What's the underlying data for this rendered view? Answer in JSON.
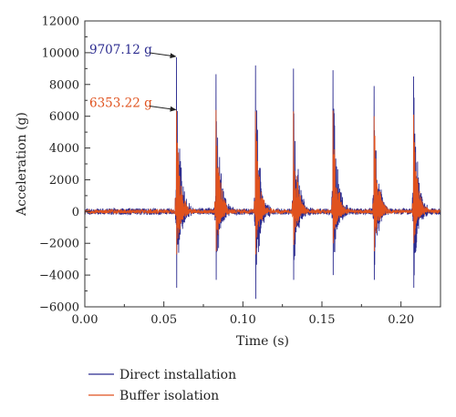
{
  "chart_data": {
    "type": "line",
    "xlabel": "Time (s)",
    "ylabel": "Acceleration (g)",
    "xlim": [
      0.0,
      0.225
    ],
    "ylim": [
      -6000,
      12000
    ],
    "x_ticks": [
      "0.00",
      "0.05",
      "0.10",
      "0.15",
      "0.20"
    ],
    "x_tick_values": [
      0.0,
      0.05,
      0.1,
      0.15,
      0.2
    ],
    "y_ticks": [
      "−6000",
      "−4000",
      "−2000",
      "0",
      "2000",
      "4000",
      "6000",
      "8000",
      "10000",
      "12000"
    ],
    "y_tick_values": [
      -6000,
      -4000,
      -2000,
      0,
      2000,
      4000,
      6000,
      8000,
      10000,
      12000
    ],
    "grid": false,
    "legend_placement": "bottom-left, below plot",
    "series": [
      {
        "name": "Direct installation",
        "color": "#2b2b8f",
        "noise_amplitude": 200,
        "impacts": [
          {
            "t": 0.058,
            "peak": 9707,
            "trough": -4800
          },
          {
            "t": 0.083,
            "peak": 8650,
            "trough": -4300
          },
          {
            "t": 0.108,
            "peak": 9200,
            "trough": -5500
          },
          {
            "t": 0.132,
            "peak": 9000,
            "trough": -4300
          },
          {
            "t": 0.157,
            "peak": 8900,
            "trough": -4000
          },
          {
            "t": 0.183,
            "peak": 7900,
            "trough": -4300
          },
          {
            "t": 0.208,
            "peak": 8500,
            "trough": -4800
          }
        ]
      },
      {
        "name": "Buffer isolation",
        "color": "#e0521e",
        "noise_amplitude": 120,
        "impacts": [
          {
            "t": 0.058,
            "peak": 6353,
            "trough": -2700
          },
          {
            "t": 0.083,
            "peak": 6400,
            "trough": -2500
          },
          {
            "t": 0.108,
            "peak": 6300,
            "trough": -2700
          },
          {
            "t": 0.132,
            "peak": 6300,
            "trough": -2100
          },
          {
            "t": 0.157,
            "peak": 6350,
            "trough": -2000
          },
          {
            "t": 0.183,
            "peak": 6000,
            "trough": -2500
          },
          {
            "t": 0.208,
            "peak": 6100,
            "trough": -2000
          }
        ]
      }
    ],
    "annotations": [
      {
        "text": "9707.12 g",
        "x": 0.058,
        "y": 9707.12,
        "color": "#2b2b8f"
      },
      {
        "text": "6353.22 g",
        "x": 0.058,
        "y": 6353.22,
        "color": "#e0521e"
      }
    ]
  }
}
